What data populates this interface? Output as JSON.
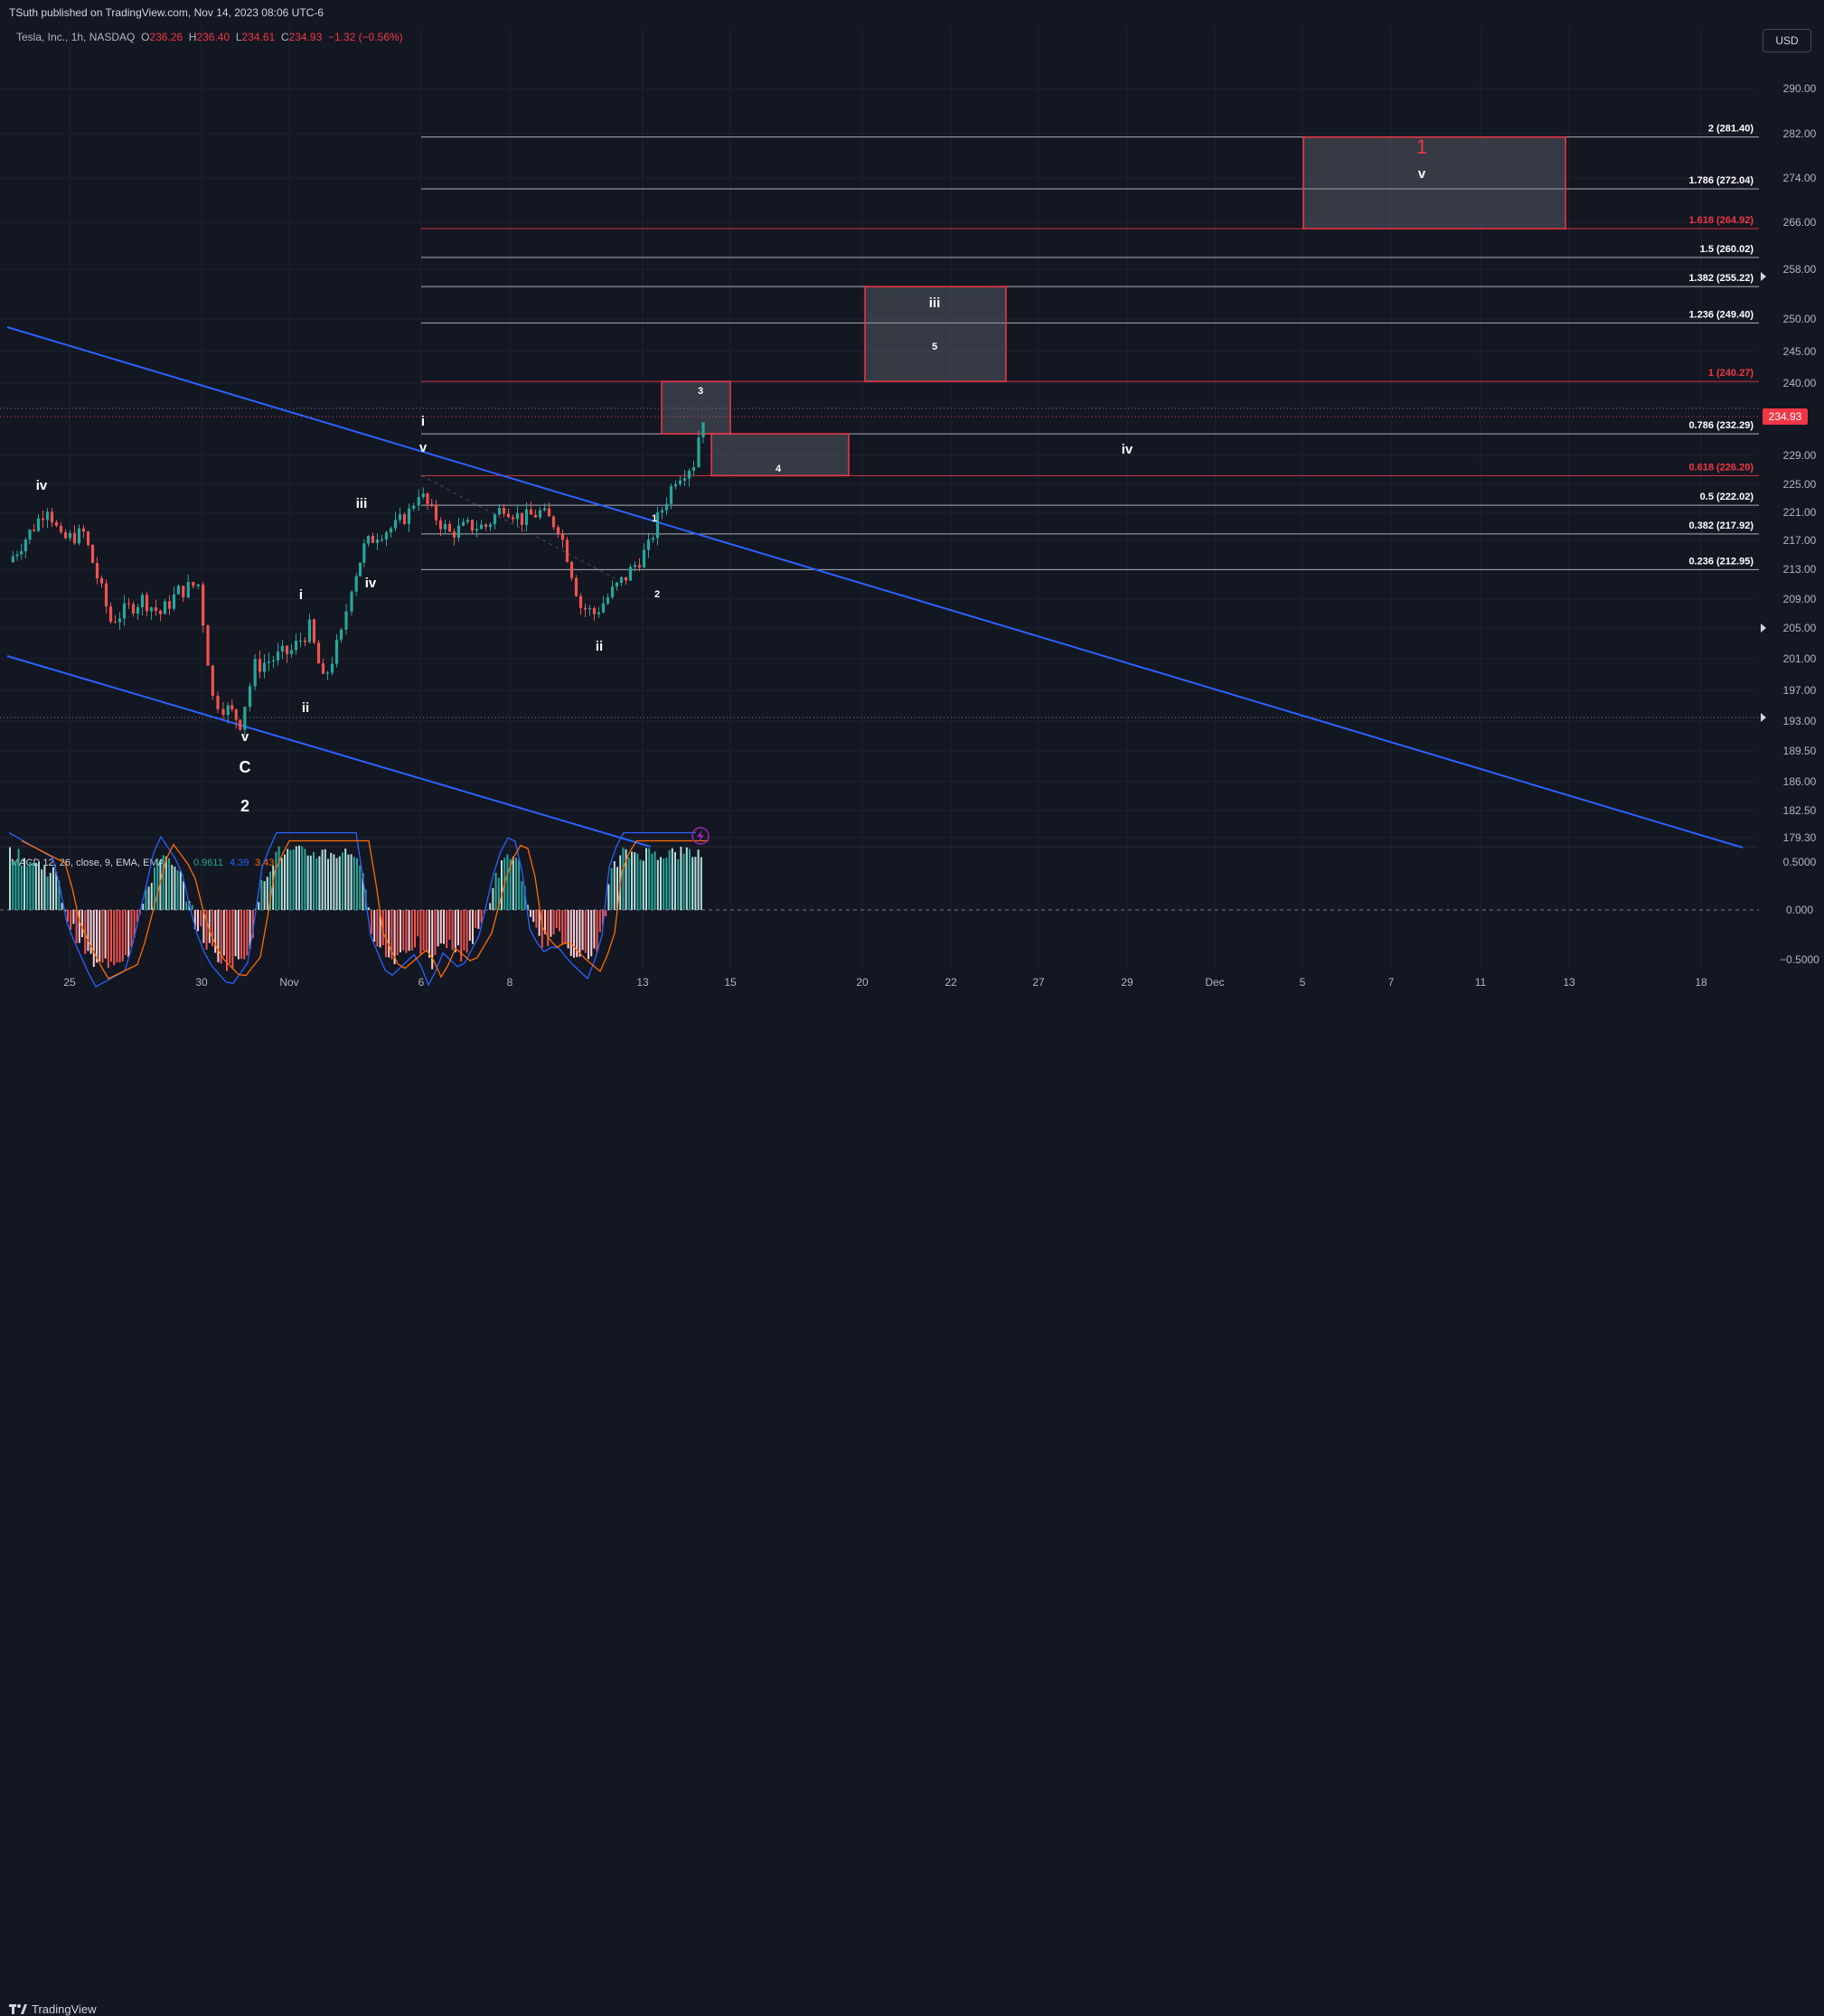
{
  "header": {
    "published": "TSuth published on TradingView.com, Nov 14, 2023 08:06 UTC-6",
    "symbol": "Tesla, Inc., 1h, NASDAQ",
    "o_label": "O",
    "o": "236.26",
    "h_label": "H",
    "h": "236.40",
    "l_label": "L",
    "l": "234.61",
    "c_label": "C",
    "c": "234.93",
    "change": "−1.32 (−0.56%)",
    "currency": "USD"
  },
  "footer": {
    "brand": "TradingView"
  },
  "colors": {
    "background": "#131722",
    "up": "#26a69a",
    "down": "#ef5350",
    "channel": "#2962ff",
    "fib_white": "#d1d4dc",
    "fib_red": "#f23645",
    "macd_line": "#2962ff",
    "signal_line": "#ff6d00"
  },
  "chart_data": {
    "type": "candlestick",
    "title": "",
    "price_axis": {
      "ticks": [
        "290.00",
        "282.00",
        "274.00",
        "266.00",
        "258.00",
        "250.00",
        "245.00",
        "240.00",
        "229.00",
        "225.00",
        "221.00",
        "217.00",
        "213.00",
        "209.00",
        "205.00",
        "201.00",
        "197.00",
        "193.00",
        "189.50",
        "186.00",
        "182.50",
        "179.30"
      ],
      "last_price": "234.93"
    },
    "time_axis": {
      "ticks": [
        "25",
        "30",
        "Nov",
        "6",
        "8",
        "13",
        "15",
        "20",
        "22",
        "27",
        "29",
        "Dec",
        "5",
        "7",
        "11",
        "13",
        "18"
      ]
    },
    "fib_levels": [
      {
        "ratio": "2",
        "price": 281.4,
        "label": "2 (281.40)",
        "color": "white"
      },
      {
        "ratio": "1.786",
        "price": 272.04,
        "label": "1.786 (272.04)",
        "color": "white"
      },
      {
        "ratio": "1.618",
        "price": 264.92,
        "label": "1.618 (264.92)",
        "color": "red"
      },
      {
        "ratio": "1.5",
        "price": 260.02,
        "label": "1.5 (260.02)",
        "color": "white"
      },
      {
        "ratio": "1.382",
        "price": 255.22,
        "label": "1.382 (255.22)",
        "color": "white"
      },
      {
        "ratio": "1.236",
        "price": 249.4,
        "label": "1.236 (249.40)",
        "color": "white"
      },
      {
        "ratio": "1",
        "price": 240.27,
        "label": "1 (240.27)",
        "color": "red"
      },
      {
        "ratio": "0.786",
        "price": 232.29,
        "label": "0.786 (232.29)",
        "color": "white"
      },
      {
        "ratio": "0.618",
        "price": 226.2,
        "label": "0.618 (226.20)",
        "color": "red"
      },
      {
        "ratio": "0.5",
        "price": 222.02,
        "label": "0.5 (222.02)",
        "color": "white"
      },
      {
        "ratio": "0.382",
        "price": 217.92,
        "label": "0.382 (217.92)",
        "color": "white"
      },
      {
        "ratio": "0.236",
        "price": 212.95,
        "label": "0.236 (212.95)",
        "color": "white"
      }
    ],
    "wave_labels": [
      {
        "text": "iv",
        "role": "minor"
      },
      {
        "text": "v",
        "role": "minor"
      },
      {
        "text": "C",
        "role": "major"
      },
      {
        "text": "2",
        "role": "major"
      },
      {
        "text": "i",
        "role": "minor"
      },
      {
        "text": "ii",
        "role": "minor"
      },
      {
        "text": "iii",
        "role": "minor"
      },
      {
        "text": "iv",
        "role": "minor"
      },
      {
        "text": "i",
        "role": "minor"
      },
      {
        "text": "v",
        "role": "minor"
      },
      {
        "text": "ii",
        "role": "minor"
      },
      {
        "text": "1",
        "role": "small"
      },
      {
        "text": "2",
        "role": "small"
      },
      {
        "text": "3",
        "role": "small"
      },
      {
        "text": "4",
        "role": "small"
      },
      {
        "text": "5",
        "role": "small"
      },
      {
        "text": "iii",
        "role": "minor"
      },
      {
        "text": "iv",
        "role": "minor"
      },
      {
        "text": "v",
        "role": "minor"
      },
      {
        "text": "1",
        "role": "target"
      }
    ],
    "axis_markers": [
      "258.00",
      "205.00",
      "193.00"
    ],
    "macd": {
      "label": "MACD 12, 26, close, 9, EMA, EMA",
      "values": [
        "0.9611",
        "4.39",
        "3.43"
      ],
      "axis_ticks": [
        "0.5000",
        "0.000",
        "−0.5000"
      ]
    }
  }
}
